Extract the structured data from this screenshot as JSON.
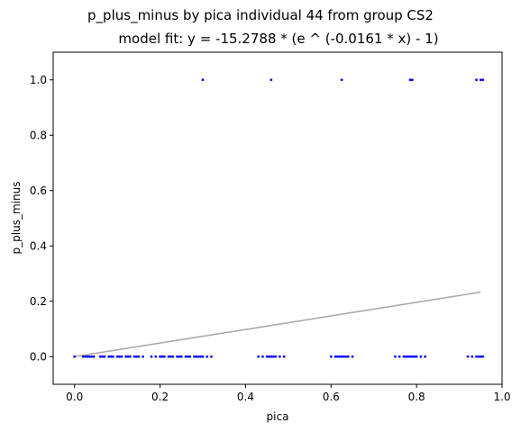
{
  "chart_data": {
    "type": "scatter",
    "title": "p_plus_minus by pica individual 44 from group CS2",
    "subtitle": "model fit: y = -15.2788 * (e ^ (-0.0161 * x) - 1)",
    "xlabel": "pica",
    "ylabel": "p_plus_minus",
    "xlim": [
      -0.05,
      1.0
    ],
    "ylim": [
      -0.1,
      1.1
    ],
    "xticks": [
      "0.0",
      "0.2",
      "0.4",
      "0.6",
      "0.8",
      "1.0"
    ],
    "yticks": [
      "0.0",
      "0.2",
      "0.4",
      "0.6",
      "0.8",
      "1.0"
    ],
    "grid": false,
    "colors": {
      "points": "#0000ff",
      "fit": "#aaaaaa"
    },
    "series": [
      {
        "kind": "points",
        "x": [
          0.0,
          0.02,
          0.025,
          0.03,
          0.035,
          0.04,
          0.045,
          0.06,
          0.065,
          0.07,
          0.08,
          0.085,
          0.09,
          0.1,
          0.105,
          0.11,
          0.12,
          0.125,
          0.13,
          0.14,
          0.145,
          0.15,
          0.16,
          0.18,
          0.19,
          0.2,
          0.205,
          0.21,
          0.22,
          0.225,
          0.23,
          0.24,
          0.245,
          0.25,
          0.26,
          0.265,
          0.27,
          0.28,
          0.285,
          0.29,
          0.295,
          0.3,
          0.31,
          0.32,
          0.43,
          0.44,
          0.45,
          0.455,
          0.46,
          0.465,
          0.47,
          0.48,
          0.49,
          0.6,
          0.61,
          0.615,
          0.62,
          0.625,
          0.63,
          0.635,
          0.64,
          0.65,
          0.75,
          0.76,
          0.77,
          0.775,
          0.78,
          0.785,
          0.79,
          0.795,
          0.8,
          0.81,
          0.82,
          0.92,
          0.93,
          0.94,
          0.945,
          0.95,
          0.955,
          0.3,
          0.46,
          0.625,
          0.785,
          0.79,
          0.94,
          0.95,
          0.955
        ],
        "y": [
          0,
          0,
          0,
          0,
          0,
          0,
          0,
          0,
          0,
          0,
          0,
          0,
          0,
          0,
          0,
          0,
          0,
          0,
          0,
          0,
          0,
          0,
          0,
          0,
          0,
          0,
          0,
          0,
          0,
          0,
          0,
          0,
          0,
          0,
          0,
          0,
          0,
          0,
          0,
          0,
          0,
          0,
          0,
          0,
          0,
          0,
          0,
          0,
          0,
          0,
          0,
          0,
          0,
          0,
          0,
          0,
          0,
          0,
          0,
          0,
          0,
          0,
          0,
          0,
          0,
          0,
          0,
          0,
          0,
          0,
          0,
          0,
          0,
          0,
          0,
          0,
          0,
          0,
          0,
          1,
          1,
          1,
          1,
          1,
          1,
          1,
          1
        ]
      },
      {
        "kind": "fit",
        "x": [
          0.0,
          0.95
        ],
        "y": [
          0.0,
          0.233
        ]
      }
    ]
  }
}
